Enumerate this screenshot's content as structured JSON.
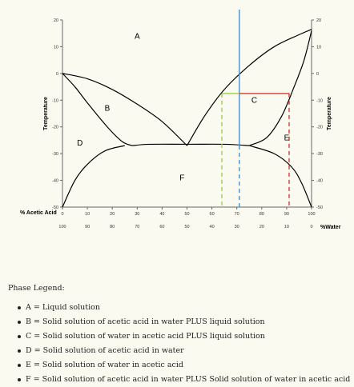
{
  "chart_data": {
    "type": "line",
    "title": "",
    "left_axis": {
      "label": "Temperature",
      "ylim": [
        -50,
        20
      ],
      "ticks": [
        "20",
        "10",
        "0",
        "-10",
        "-20",
        "-30",
        "-40",
        "-50"
      ]
    },
    "right_axis": {
      "label": "Temperature",
      "ticks": [
        "20",
        "10",
        "0",
        "-10",
        "-20",
        "-30",
        "-40",
        "-50"
      ]
    },
    "x_axis_top": {
      "label": "% Acetic Acid",
      "xlim": [
        0,
        100
      ],
      "ticks": [
        "0",
        "10",
        "20",
        "30",
        "40",
        "50",
        "60",
        "70",
        "80",
        "90",
        "100"
      ]
    },
    "x_axis_bottom": {
      "label": "%Water",
      "ticks": [
        "100",
        "90",
        "80",
        "70",
        "60",
        "50",
        "40",
        "30",
        "20",
        "10",
        "0"
      ]
    },
    "grid": false,
    "series": [
      {
        "color": "#000000",
        "points": [
          [
            0,
            0
          ],
          [
            10,
            -2
          ],
          [
            20,
            -6
          ],
          [
            30,
            -11.5
          ],
          [
            40,
            -18
          ],
          [
            50,
            -27
          ]
        ]
      },
      {
        "color": "#000000",
        "points": [
          [
            50,
            -27
          ],
          [
            57,
            -16
          ],
          [
            65,
            -6
          ],
          [
            75,
            3
          ],
          [
            85,
            10
          ],
          [
            95,
            14.5
          ],
          [
            100,
            16.5
          ]
        ]
      },
      {
        "color": "#000000",
        "points": [
          [
            0,
            0
          ],
          [
            5,
            -5
          ],
          [
            10,
            -11
          ],
          [
            18,
            -20
          ],
          [
            24,
            -25.5
          ],
          [
            28,
            -27
          ]
        ]
      },
      {
        "color": "#000000",
        "points": [
          [
            28,
            -27
          ],
          [
            35,
            -26.5
          ],
          [
            50,
            -26.5
          ],
          [
            65,
            -26.5
          ],
          [
            75,
            -27
          ]
        ]
      },
      {
        "color": "#000000",
        "points": [
          [
            75,
            -27
          ],
          [
            82,
            -24
          ],
          [
            88,
            -16
          ],
          [
            93,
            -5
          ],
          [
            97,
            5
          ],
          [
            100,
            16
          ]
        ]
      },
      {
        "color": "#000000",
        "points": [
          [
            0,
            -50
          ],
          [
            5,
            -40
          ],
          [
            10,
            -34
          ],
          [
            17,
            -29
          ],
          [
            25,
            -27
          ]
        ]
      },
      {
        "color": "#000000",
        "points": [
          [
            75,
            -27
          ],
          [
            85,
            -30
          ],
          [
            92,
            -35
          ],
          [
            96,
            -41
          ],
          [
            100,
            -50
          ]
        ]
      }
    ],
    "markers": {
      "vertical_line": {
        "x": 71,
        "color": "#4a8cc9"
      },
      "green_dashed": {
        "x": 64,
        "y_from": -50,
        "y_to": -7.5,
        "color": "#9ccc48"
      },
      "green_tie": {
        "x_from": 64,
        "x_to": 71,
        "y": -7.5,
        "color": "#9ccc48"
      },
      "red_tie": {
        "x_from": 71,
        "x_to": 91,
        "y": -7.5,
        "color": "#d03a30"
      },
      "red_dashed": {
        "x": 91,
        "y_from": -50,
        "y_to": -7.5,
        "color": "#d03a30"
      }
    },
    "region_labels": [
      {
        "text": "A",
        "x": 30,
        "y": 13
      },
      {
        "text": "B",
        "x": 18,
        "y": -14
      },
      {
        "text": "C",
        "x": 77,
        "y": -11
      },
      {
        "text": "D",
        "x": 7,
        "y": -27
      },
      {
        "text": "E",
        "x": 90,
        "y": -25
      },
      {
        "text": "F",
        "x": 48,
        "y": -40
      }
    ]
  },
  "legend": {
    "title": "Phase Legend:",
    "items": [
      "A = Liquid solution",
      "B = Solid solution of acetic acid in water PLUS liquid solution",
      "C = Solid solution of water in acetic acid PLUS liquid solution",
      "D = Solid solution of acetic acid in water",
      "E = Solid solution of water in acetic acid",
      "F = Solid solution of acetic acid in water PLUS Solid solution of water in acetic acid"
    ]
  }
}
